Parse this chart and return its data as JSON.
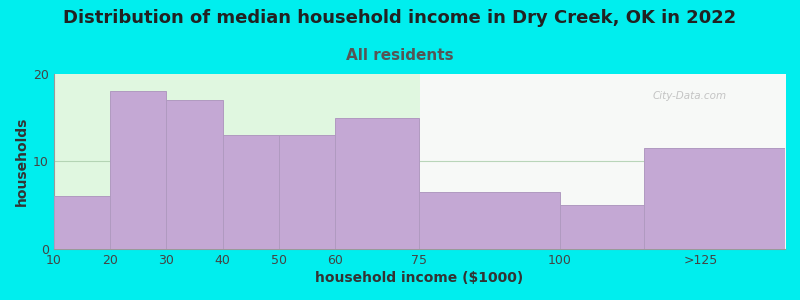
{
  "title": "Distribution of median household income in Dry Creek, OK in 2022",
  "subtitle": "All residents",
  "xlabel": "household income ($1000)",
  "ylabel": "households",
  "background_color": "#00EEEE",
  "bar_color": "#C4A8D4",
  "bar_edge_color": "#B09AC0",
  "values": [
    6,
    18,
    17,
    13,
    13,
    15,
    6.5,
    5,
    11.5
  ],
  "bin_edges": [
    10,
    20,
    30,
    40,
    50,
    60,
    75,
    100,
    115,
    140
  ],
  "tick_positions": [
    10,
    20,
    30,
    40,
    50,
    60,
    75,
    100,
    125
  ],
  "tick_labels": [
    "10",
    "20",
    "30",
    "40",
    "50",
    "60",
    "75",
    "100",
    ">125"
  ],
  "ylim": [
    0,
    20
  ],
  "yticks": [
    0,
    10,
    20
  ],
  "title_fontsize": 13,
  "subtitle_fontsize": 11,
  "subtitle_color": "#555555",
  "axis_label_fontsize": 10,
  "tick_fontsize": 9,
  "watermark": "City-Data.com"
}
